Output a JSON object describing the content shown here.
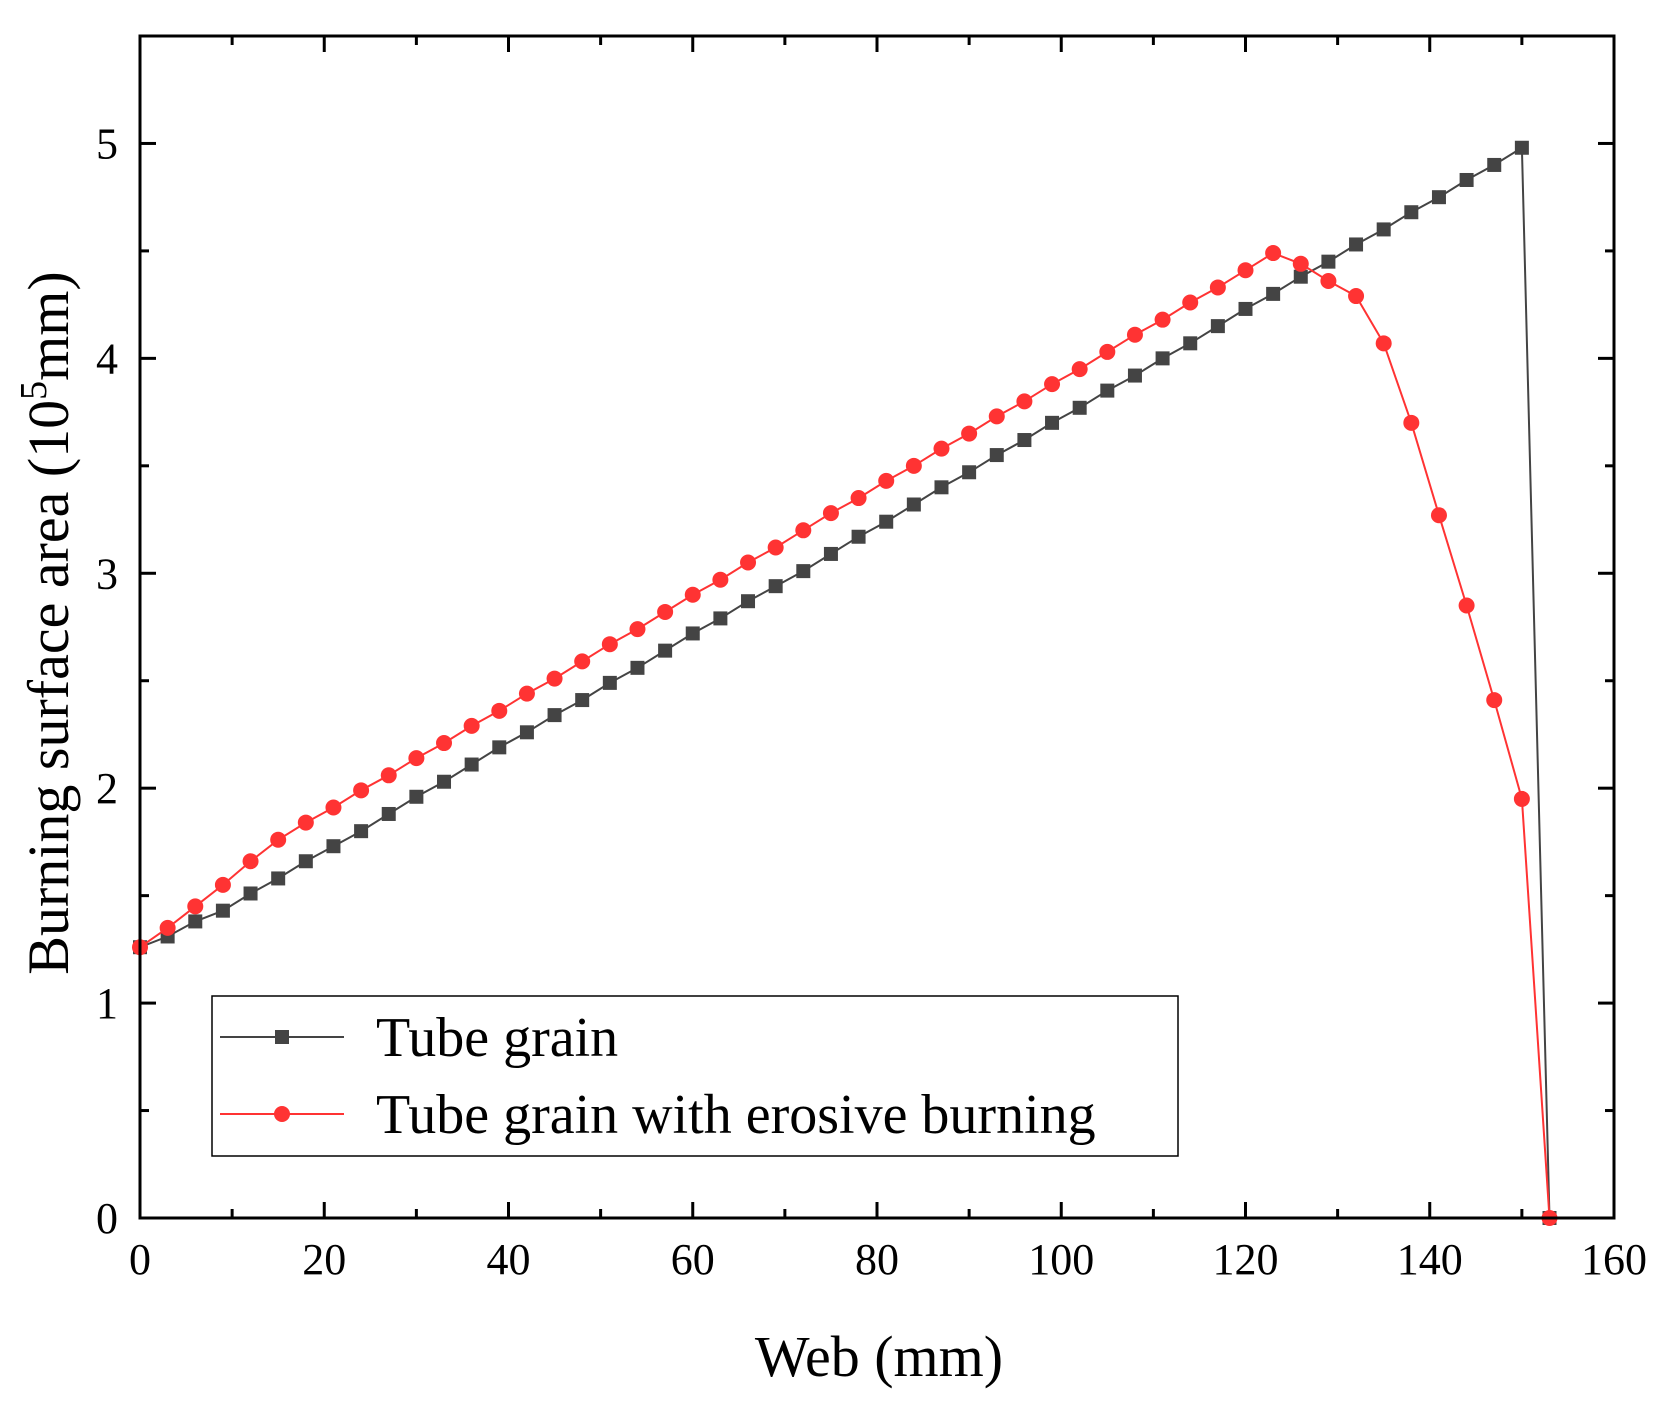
{
  "chart_data": {
    "type": "line",
    "title": "",
    "xlabel": "Web (mm)",
    "ylabel": {
      "prefix": "Burning surface area (10",
      "superscript": "5",
      "suffix": "mm)"
    },
    "xlim": [
      0,
      160
    ],
    "ylim": [
      0,
      5.5
    ],
    "x_ticks": [
      "0",
      "20",
      "40",
      "60",
      "80",
      "100",
      "120",
      "140",
      "160"
    ],
    "x_tick_values": [
      0,
      20,
      40,
      60,
      80,
      100,
      120,
      140,
      160
    ],
    "y_ticks": [
      "0",
      "1",
      "2",
      "3",
      "4",
      "5"
    ],
    "y_tick_values": [
      0,
      1,
      2,
      3,
      4,
      5
    ],
    "grid": false,
    "legend_position": "bottom-left",
    "series": [
      {
        "name": "Tube grain",
        "color": "#444444",
        "marker": "square",
        "x": [
          0,
          3,
          6,
          9,
          12,
          15,
          18,
          21,
          24,
          27,
          30,
          33,
          36,
          39,
          42,
          45,
          48,
          51,
          54,
          57,
          60,
          63,
          66,
          69,
          72,
          75,
          78,
          81,
          84,
          87,
          90,
          93,
          96,
          99,
          102,
          105,
          108,
          111,
          114,
          117,
          120,
          123,
          126,
          129,
          132,
          135,
          138,
          141,
          144,
          147,
          150,
          153
        ],
        "values": [
          1.26,
          1.31,
          1.38,
          1.43,
          1.51,
          1.58,
          1.66,
          1.73,
          1.8,
          1.88,
          1.96,
          2.03,
          2.11,
          2.19,
          2.26,
          2.34,
          2.41,
          2.49,
          2.56,
          2.64,
          2.72,
          2.79,
          2.87,
          2.94,
          3.01,
          3.09,
          3.17,
          3.24,
          3.32,
          3.4,
          3.47,
          3.55,
          3.62,
          3.7,
          3.77,
          3.85,
          3.92,
          4.0,
          4.07,
          4.15,
          4.23,
          4.3,
          4.38,
          4.45,
          4.53,
          4.6,
          4.68,
          4.75,
          4.83,
          4.9,
          4.98,
          0
        ]
      },
      {
        "name": "Tube grain with erosive burning",
        "color": "#ff3333",
        "marker": "circle",
        "x": [
          0,
          3,
          6,
          9,
          12,
          15,
          18,
          21,
          24,
          27,
          30,
          33,
          36,
          39,
          42,
          45,
          48,
          51,
          54,
          57,
          60,
          63,
          66,
          69,
          72,
          75,
          78,
          81,
          84,
          87,
          90,
          93,
          96,
          99,
          102,
          105,
          108,
          111,
          114,
          117,
          120,
          123,
          126,
          129,
          132,
          135,
          138,
          141,
          144,
          147,
          150,
          153
        ],
        "values": [
          1.26,
          1.35,
          1.45,
          1.55,
          1.66,
          1.76,
          1.84,
          1.91,
          1.99,
          2.06,
          2.14,
          2.21,
          2.29,
          2.36,
          2.44,
          2.51,
          2.59,
          2.67,
          2.74,
          2.82,
          2.9,
          2.97,
          3.05,
          3.12,
          3.2,
          3.28,
          3.35,
          3.43,
          3.5,
          3.58,
          3.65,
          3.73,
          3.8,
          3.88,
          3.95,
          4.03,
          4.11,
          4.18,
          4.26,
          4.33,
          4.41,
          4.49,
          4.44,
          4.36,
          4.29,
          4.07,
          3.7,
          3.27,
          2.85,
          2.41,
          1.95,
          0
        ]
      }
    ]
  }
}
